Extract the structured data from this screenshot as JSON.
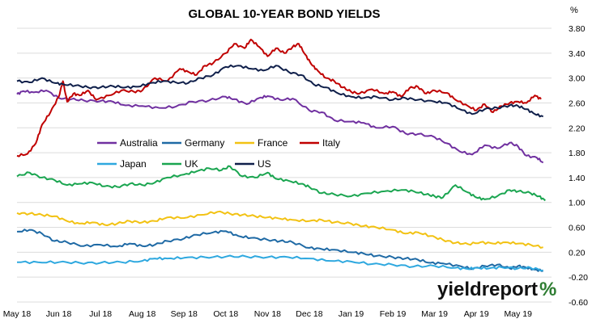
{
  "chart_data": {
    "type": "line",
    "title": "GLOBAL 10-YEAR BOND YIELDS",
    "unit": "%",
    "x_labels": [
      "May 18",
      "Jun 18",
      "Jul 18",
      "Aug 18",
      "Sep 18",
      "Oct 18",
      "Nov 18",
      "Dec 18",
      "Jan 19",
      "Feb 19",
      "Mar 19",
      "Apr 19",
      "May 19"
    ],
    "ylim": [
      -0.6,
      3.8
    ],
    "y_ticks": [
      "3.80",
      "3.40",
      "3.00",
      "2.60",
      "2.20",
      "1.80",
      "1.40",
      "1.00",
      "0.60",
      "0.20",
      "-0.20",
      "-0.60"
    ],
    "grid": "horizontal",
    "legend_position": "center-left",
    "series": [
      {
        "name": "Australia",
        "color": "#7030a0",
        "points": [
          [
            0,
            2.74
          ],
          [
            0.15,
            2.79
          ],
          [
            0.4,
            2.77
          ],
          [
            0.7,
            2.8
          ],
          [
            1.0,
            2.68
          ],
          [
            1.3,
            2.66
          ],
          [
            1.6,
            2.64
          ],
          [
            2.0,
            2.63
          ],
          [
            2.3,
            2.62
          ],
          [
            2.6,
            2.56
          ],
          [
            3.0,
            2.55
          ],
          [
            3.4,
            2.52
          ],
          [
            3.8,
            2.54
          ],
          [
            4.2,
            2.62
          ],
          [
            4.6,
            2.64
          ],
          [
            5.0,
            2.7
          ],
          [
            5.2,
            2.66
          ],
          [
            5.5,
            2.58
          ],
          [
            5.8,
            2.68
          ],
          [
            6.0,
            2.71
          ],
          [
            6.3,
            2.65
          ],
          [
            6.6,
            2.67
          ],
          [
            7.0,
            2.48
          ],
          [
            7.3,
            2.45
          ],
          [
            7.6,
            2.32
          ],
          [
            8.0,
            2.3
          ],
          [
            8.3,
            2.28
          ],
          [
            8.6,
            2.2
          ],
          [
            9.0,
            2.22
          ],
          [
            9.3,
            2.11
          ],
          [
            9.6,
            2.1
          ],
          [
            10.0,
            2.05
          ],
          [
            10.3,
            1.95
          ],
          [
            10.6,
            1.82
          ],
          [
            10.9,
            1.77
          ],
          [
            11.2,
            1.92
          ],
          [
            11.5,
            1.87
          ],
          [
            11.8,
            1.96
          ],
          [
            12.0,
            1.9
          ],
          [
            12.2,
            1.75
          ],
          [
            12.45,
            1.72
          ],
          [
            12.6,
            1.64
          ]
        ]
      },
      {
        "name": "Germany",
        "color": "#1f6aa5",
        "points": [
          [
            0,
            0.53
          ],
          [
            0.3,
            0.56
          ],
          [
            0.6,
            0.5
          ],
          [
            0.9,
            0.38
          ],
          [
            1.2,
            0.36
          ],
          [
            1.6,
            0.3
          ],
          [
            2.0,
            0.32
          ],
          [
            2.4,
            0.29
          ],
          [
            2.7,
            0.34
          ],
          [
            3.0,
            0.3
          ],
          [
            3.3,
            0.32
          ],
          [
            3.6,
            0.38
          ],
          [
            4.0,
            0.42
          ],
          [
            4.3,
            0.48
          ],
          [
            4.7,
            0.52
          ],
          [
            5.0,
            0.54
          ],
          [
            5.3,
            0.46
          ],
          [
            5.6,
            0.43
          ],
          [
            6.0,
            0.4
          ],
          [
            6.3,
            0.38
          ],
          [
            6.6,
            0.36
          ],
          [
            7.0,
            0.27
          ],
          [
            7.3,
            0.25
          ],
          [
            7.6,
            0.24
          ],
          [
            8.0,
            0.2
          ],
          [
            8.3,
            0.18
          ],
          [
            8.6,
            0.14
          ],
          [
            9.0,
            0.12
          ],
          [
            9.3,
            0.1
          ],
          [
            9.6,
            0.08
          ],
          [
            9.9,
            0.03
          ],
          [
            10.2,
            0.02
          ],
          [
            10.6,
            -0.02
          ],
          [
            10.9,
            -0.07
          ],
          [
            11.2,
            -0.02
          ],
          [
            11.5,
            0.0
          ],
          [
            11.8,
            -0.06
          ],
          [
            12.0,
            -0.02
          ],
          [
            12.2,
            -0.05
          ],
          [
            12.4,
            -0.08
          ],
          [
            12.6,
            -0.1
          ]
        ]
      },
      {
        "name": "France",
        "color": "#f2c213",
        "points": [
          [
            0,
            0.83
          ],
          [
            0.3,
            0.82
          ],
          [
            0.6,
            0.8
          ],
          [
            0.9,
            0.78
          ],
          [
            1.2,
            0.7
          ],
          [
            1.5,
            0.66
          ],
          [
            1.8,
            0.68
          ],
          [
            2.1,
            0.64
          ],
          [
            2.4,
            0.66
          ],
          [
            2.7,
            0.7
          ],
          [
            3.0,
            0.68
          ],
          [
            3.3,
            0.7
          ],
          [
            3.6,
            0.76
          ],
          [
            4.0,
            0.75
          ],
          [
            4.4,
            0.8
          ],
          [
            4.8,
            0.85
          ],
          [
            5.1,
            0.82
          ],
          [
            5.4,
            0.8
          ],
          [
            5.7,
            0.78
          ],
          [
            6.0,
            0.76
          ],
          [
            6.3,
            0.74
          ],
          [
            6.6,
            0.72
          ],
          [
            7.0,
            0.7
          ],
          [
            7.3,
            0.72
          ],
          [
            7.6,
            0.68
          ],
          [
            8.0,
            0.66
          ],
          [
            8.3,
            0.62
          ],
          [
            8.6,
            0.6
          ],
          [
            9.0,
            0.56
          ],
          [
            9.3,
            0.5
          ],
          [
            9.6,
            0.52
          ],
          [
            9.9,
            0.46
          ],
          [
            10.2,
            0.4
          ],
          [
            10.5,
            0.35
          ],
          [
            10.8,
            0.33
          ],
          [
            11.1,
            0.36
          ],
          [
            11.4,
            0.34
          ],
          [
            11.7,
            0.36
          ],
          [
            12.0,
            0.34
          ],
          [
            12.3,
            0.32
          ],
          [
            12.6,
            0.28
          ]
        ]
      },
      {
        "name": "Italy",
        "color": "#c00000",
        "points": [
          [
            0,
            1.75
          ],
          [
            0.25,
            1.78
          ],
          [
            0.45,
            1.95
          ],
          [
            0.6,
            2.25
          ],
          [
            0.8,
            2.45
          ],
          [
            1.0,
            2.7
          ],
          [
            1.1,
            2.95
          ],
          [
            1.2,
            2.62
          ],
          [
            1.35,
            2.75
          ],
          [
            1.5,
            2.72
          ],
          [
            1.7,
            2.8
          ],
          [
            1.9,
            2.65
          ],
          [
            2.2,
            2.72
          ],
          [
            2.5,
            2.8
          ],
          [
            2.8,
            2.78
          ],
          [
            3.0,
            2.8
          ],
          [
            3.3,
            3.0
          ],
          [
            3.6,
            2.95
          ],
          [
            3.9,
            3.15
          ],
          [
            4.1,
            3.1
          ],
          [
            4.3,
            3.05
          ],
          [
            4.5,
            3.2
          ],
          [
            4.7,
            3.24
          ],
          [
            5.0,
            3.4
          ],
          [
            5.2,
            3.55
          ],
          [
            5.45,
            3.48
          ],
          [
            5.6,
            3.62
          ],
          [
            5.8,
            3.5
          ],
          [
            6.0,
            3.35
          ],
          [
            6.2,
            3.48
          ],
          [
            6.4,
            3.4
          ],
          [
            6.6,
            3.5
          ],
          [
            6.75,
            3.55
          ],
          [
            6.9,
            3.38
          ],
          [
            7.05,
            3.22
          ],
          [
            7.2,
            3.12
          ],
          [
            7.4,
            3.0
          ],
          [
            7.6,
            2.95
          ],
          [
            7.8,
            2.85
          ],
          [
            8.0,
            2.78
          ],
          [
            8.2,
            2.75
          ],
          [
            8.5,
            2.82
          ],
          [
            8.8,
            2.75
          ],
          [
            9.0,
            2.78
          ],
          [
            9.2,
            2.7
          ],
          [
            9.4,
            2.84
          ],
          [
            9.6,
            2.86
          ],
          [
            9.8,
            2.75
          ],
          [
            10.0,
            2.8
          ],
          [
            10.3,
            2.76
          ],
          [
            10.5,
            2.65
          ],
          [
            10.8,
            2.55
          ],
          [
            11.0,
            2.48
          ],
          [
            11.2,
            2.58
          ],
          [
            11.4,
            2.45
          ],
          [
            11.6,
            2.55
          ],
          [
            11.8,
            2.6
          ],
          [
            12.0,
            2.62
          ],
          [
            12.2,
            2.6
          ],
          [
            12.4,
            2.72
          ],
          [
            12.55,
            2.66
          ]
        ]
      },
      {
        "name": "Japan",
        "color": "#2ea8df",
        "points": [
          [
            0,
            0.04
          ],
          [
            0.5,
            0.04
          ],
          [
            1.0,
            0.04
          ],
          [
            1.5,
            0.03
          ],
          [
            2.0,
            0.03
          ],
          [
            2.5,
            0.04
          ],
          [
            3.0,
            0.06
          ],
          [
            3.3,
            0.1
          ],
          [
            3.6,
            0.1
          ],
          [
            4.0,
            0.11
          ],
          [
            4.5,
            0.12
          ],
          [
            5.0,
            0.13
          ],
          [
            5.5,
            0.13
          ],
          [
            6.0,
            0.12
          ],
          [
            6.5,
            0.12
          ],
          [
            7.0,
            0.1
          ],
          [
            7.5,
            0.06
          ],
          [
            8.0,
            0.05
          ],
          [
            8.5,
            0.01
          ],
          [
            9.0,
            0.0
          ],
          [
            9.5,
            -0.03
          ],
          [
            10.0,
            -0.02
          ],
          [
            10.5,
            -0.05
          ],
          [
            10.8,
            -0.07
          ],
          [
            11.0,
            -0.05
          ],
          [
            11.3,
            -0.06
          ],
          [
            11.6,
            -0.04
          ],
          [
            12.0,
            -0.06
          ],
          [
            12.3,
            -0.05
          ],
          [
            12.6,
            -0.09
          ]
        ]
      },
      {
        "name": "UK",
        "color": "#1aa550",
        "points": [
          [
            0,
            1.42
          ],
          [
            0.3,
            1.48
          ],
          [
            0.6,
            1.4
          ],
          [
            0.9,
            1.36
          ],
          [
            1.2,
            1.28
          ],
          [
            1.5,
            1.3
          ],
          [
            1.8,
            1.32
          ],
          [
            2.1,
            1.26
          ],
          [
            2.4,
            1.25
          ],
          [
            2.7,
            1.3
          ],
          [
            3.0,
            1.28
          ],
          [
            3.3,
            1.32
          ],
          [
            3.6,
            1.4
          ],
          [
            4.0,
            1.45
          ],
          [
            4.3,
            1.5
          ],
          [
            4.6,
            1.55
          ],
          [
            4.9,
            1.52
          ],
          [
            5.1,
            1.58
          ],
          [
            5.4,
            1.42
          ],
          [
            5.7,
            1.4
          ],
          [
            6.0,
            1.48
          ],
          [
            6.2,
            1.38
          ],
          [
            6.5,
            1.35
          ],
          [
            6.8,
            1.3
          ],
          [
            7.0,
            1.25
          ],
          [
            7.3,
            1.15
          ],
          [
            7.6,
            1.13
          ],
          [
            8.0,
            1.1
          ],
          [
            8.4,
            1.15
          ],
          [
            8.8,
            1.18
          ],
          [
            9.2,
            1.2
          ],
          [
            9.5,
            1.18
          ],
          [
            9.8,
            1.13
          ],
          [
            10.0,
            1.1
          ],
          [
            10.2,
            1.08
          ],
          [
            10.5,
            1.28
          ],
          [
            10.8,
            1.16
          ],
          [
            11.0,
            1.08
          ],
          [
            11.2,
            1.05
          ],
          [
            11.5,
            1.1
          ],
          [
            11.8,
            1.2
          ],
          [
            12.0,
            1.18
          ],
          [
            12.3,
            1.15
          ],
          [
            12.5,
            1.1
          ],
          [
            12.65,
            1.03
          ]
        ]
      },
      {
        "name": "US",
        "color": "#0f1f4a",
        "points": [
          [
            0,
            2.95
          ],
          [
            0.3,
            2.93
          ],
          [
            0.6,
            3.0
          ],
          [
            0.9,
            2.92
          ],
          [
            1.1,
            2.9
          ],
          [
            1.4,
            2.88
          ],
          [
            1.7,
            2.85
          ],
          [
            2.0,
            2.85
          ],
          [
            2.3,
            2.87
          ],
          [
            2.6,
            2.85
          ],
          [
            2.9,
            2.86
          ],
          [
            3.2,
            2.92
          ],
          [
            3.5,
            2.95
          ],
          [
            3.8,
            2.93
          ],
          [
            4.1,
            2.92
          ],
          [
            4.4,
            3.0
          ],
          [
            4.7,
            3.05
          ],
          [
            5.0,
            3.18
          ],
          [
            5.3,
            3.2
          ],
          [
            5.6,
            3.15
          ],
          [
            5.9,
            3.12
          ],
          [
            6.2,
            3.2
          ],
          [
            6.5,
            3.1
          ],
          [
            6.8,
            3.05
          ],
          [
            7.1,
            2.9
          ],
          [
            7.4,
            2.85
          ],
          [
            7.7,
            2.75
          ],
          [
            8.0,
            2.7
          ],
          [
            8.3,
            2.68
          ],
          [
            8.6,
            2.7
          ],
          [
            9.0,
            2.65
          ],
          [
            9.3,
            2.68
          ],
          [
            9.6,
            2.65
          ],
          [
            10.0,
            2.62
          ],
          [
            10.3,
            2.6
          ],
          [
            10.6,
            2.5
          ],
          [
            10.9,
            2.42
          ],
          [
            11.2,
            2.5
          ],
          [
            11.5,
            2.52
          ],
          [
            11.8,
            2.56
          ],
          [
            12.0,
            2.55
          ],
          [
            12.2,
            2.5
          ],
          [
            12.4,
            2.42
          ],
          [
            12.6,
            2.38
          ]
        ]
      }
    ]
  },
  "brand": {
    "main": "yieldreport",
    "accent": "%"
  }
}
